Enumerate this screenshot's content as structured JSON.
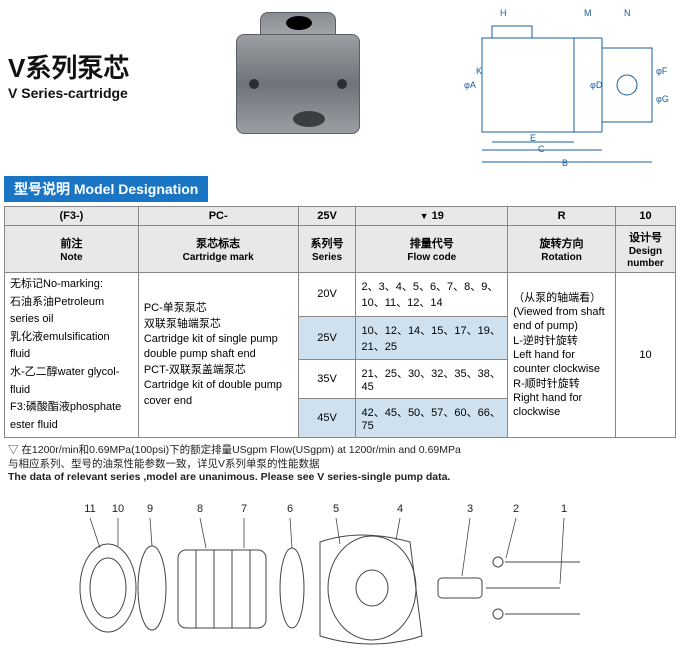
{
  "title": {
    "cn": "V系列泵芯",
    "en": "V Series-cartridge"
  },
  "banner": "型号说明 Model Designation",
  "table": {
    "head": {
      "c1": "(F3-)",
      "c2": "PC-",
      "c3": "25V",
      "c4": "19",
      "c4arrow": "▼",
      "c5": "R",
      "c6": "10"
    },
    "sub": {
      "c1cn": "前注",
      "c1en": "Note",
      "c2cn": "泵芯标志",
      "c2en": "Cartridge mark",
      "c3cn": "系列号",
      "c3en": "Series",
      "c4cn": "排量代号",
      "c4en": "Flow code",
      "c5cn": "旋转方向",
      "c5en": "Rotation",
      "c6cn": "设计号",
      "c6en": "Design number"
    },
    "note_cell": "无标记No-marking:\n石油系油Petroleum series oil\n乳化液emulsification fluid\n水-乙二醇water glycol-fluid\nF3:磷酸酯液phosphate ester fluid",
    "cart_cell": "PC-单泵泵芯\n    双联泵轴端泵芯\n    Cartridge kit of single pump double pump shaft end\nPCT-双联泵盖端泵芯\n    Cartridge kit of double pump cover end",
    "rot_cell": "（从泵的轴端看）\n(Viewed from shaft end of pump)\nL-逆时针旋转\nLeft hand for counter clockwise\nR-顺时针旋转\nRight hand for clockwise",
    "design_cell": "10",
    "rows": [
      {
        "series": "20V",
        "flow": "2、3、4、5、6、7、8、9、10、11、12、14"
      },
      {
        "series": "25V",
        "flow": "10、12、14、15、17、19、21、25",
        "hl": true
      },
      {
        "series": "35V",
        "flow": "21、25、30、32、35、38、45"
      },
      {
        "series": "45V",
        "flow": "42、45、50、57、60、66、75",
        "hl": true
      }
    ]
  },
  "footnote": {
    "l1": "▽ 在1200r/min和0.69MPa(100psi)下的额定排量USgpm Flow(USgpm) at 1200r/min and 0.69MPa",
    "l2": "    与相应系列、型号的油泵性能参数一致，详见V系列单泵的性能数据",
    "l3": "    The data of relevant series ,model are unanimous. Please see V series-single pump data."
  },
  "tech_labels": {
    "H": "H",
    "M": "M",
    "N": "N",
    "A": "φA",
    "K": "K",
    "D": "φD",
    "F": "φF",
    "G": "φG",
    "E": "E",
    "C": "C",
    "B": "B"
  },
  "exploded_labels": [
    "11",
    "10",
    "9",
    "8",
    "7",
    "6",
    "5",
    "4",
    "3",
    "2",
    "1"
  ],
  "colors": {
    "banner": "#1a76c4",
    "highlight": "#cfe1ef",
    "grey_head": "#e8e8e8",
    "line": "#6b6b6b"
  }
}
